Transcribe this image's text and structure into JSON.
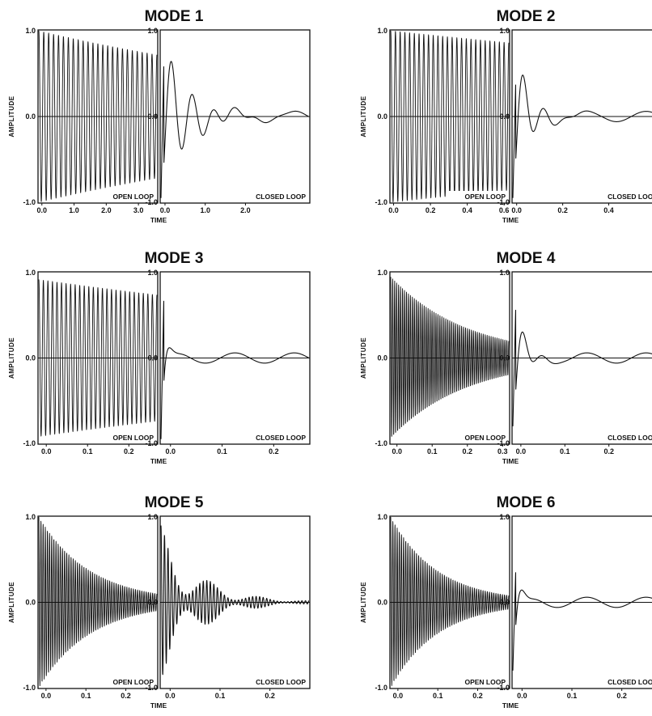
{
  "figure": {
    "ylabel": "AMPLITUDE",
    "xlabel": "TIME",
    "open_tag": "OPEN LOOP",
    "closed_tag": "CLOSED LOOP",
    "ytick_labels": [
      "1.0",
      "0.0",
      "-1.0"
    ]
  },
  "chart_data": [
    {
      "type": "line",
      "title": "MODE 1",
      "ylim": [
        -1,
        1
      ],
      "grid": false,
      "open_loop": {
        "label": "OPEN LOOP",
        "xlim": [
          -0.12,
          3.6
        ],
        "xticks": [
          0.0,
          1.0,
          2.0,
          3.0
        ],
        "xtick_labels": [
          "0.0",
          "1.0",
          "2.0",
          "3.0"
        ],
        "signal": {
          "amplitude": 1.0,
          "decay_to": 0.72,
          "cycles": 24,
          "kind": "oscillation"
        }
      },
      "closed_loop": {
        "label": "CLOSED LOOP",
        "xlim": [
          -0.12,
          3.6
        ],
        "xticks": [
          0.0,
          1.0,
          2.0
        ],
        "xtick_labels": [
          "0.0",
          "1.0",
          "2.0"
        ],
        "signal": {
          "start": -0.95,
          "peak": 0.85,
          "settle_time": 0.8,
          "kind": "damped"
        }
      }
    },
    {
      "type": "line",
      "title": "MODE 2",
      "ylim": [
        -1,
        1
      ],
      "grid": false,
      "open_loop": {
        "label": "OPEN LOOP",
        "xlim": [
          -0.02,
          0.63
        ],
        "xticks": [
          0.0,
          0.2,
          0.4,
          0.6
        ],
        "xtick_labels": [
          "0.0",
          "0.2",
          "0.4",
          "0.6"
        ],
        "signal": {
          "amplitude": 1.0,
          "decay_to": 0.86,
          "cycles": 25,
          "kind": "oscillation"
        }
      },
      "closed_loop": {
        "label": "CLOSED LOOP",
        "xlim": [
          -0.02,
          0.63
        ],
        "xticks": [
          0.0,
          0.2,
          0.4
        ],
        "xtick_labels": [
          "0.0",
          "0.2",
          "0.4"
        ],
        "signal": {
          "start": -0.95,
          "peak": 0.6,
          "settle_time": 0.45,
          "kind": "damped"
        }
      }
    },
    {
      "type": "line",
      "title": "MODE 3",
      "ylim": [
        -1,
        1
      ],
      "grid": false,
      "open_loop": {
        "label": "OPEN LOOP",
        "xlim": [
          -0.02,
          0.27
        ],
        "xticks": [
          0.0,
          0.1,
          0.2
        ],
        "xtick_labels": [
          "0.0",
          "0.1",
          "0.2"
        ],
        "signal": {
          "amplitude": 0.92,
          "decay_to": 0.74,
          "cycles": 26,
          "kind": "oscillation"
        }
      },
      "closed_loop": {
        "label": "CLOSED LOOP",
        "xlim": [
          -0.02,
          0.27
        ],
        "xticks": [
          0.0,
          0.1,
          0.2
        ],
        "xtick_labels": [
          "0.0",
          "0.1",
          "0.2"
        ],
        "signal": {
          "start": -0.95,
          "peak": 0.95,
          "settle_time": 0.12,
          "kind": "damped"
        }
      }
    },
    {
      "type": "line",
      "title": "MODE 4",
      "ylim": [
        -1,
        1
      ],
      "grid": false,
      "open_loop": {
        "label": "OPEN LOOP",
        "xlim": [
          -0.02,
          0.32
        ],
        "xticks": [
          0.0,
          0.1,
          0.2,
          0.3
        ],
        "xtick_labels": [
          "0.0",
          "0.1",
          "0.2",
          "0.3"
        ],
        "signal": {
          "amplitude": 0.95,
          "decay_to": 0.2,
          "cycles": 60,
          "kind": "oscillation"
        }
      },
      "closed_loop": {
        "label": "CLOSED LOOP",
        "xlim": [
          -0.02,
          0.32
        ],
        "xticks": [
          0.0,
          0.1,
          0.2
        ],
        "xtick_labels": [
          "0.0",
          "0.1",
          "0.2"
        ],
        "signal": {
          "start": -0.8,
          "peak": 0.8,
          "settle_time": 0.3,
          "kind": "damped"
        }
      }
    },
    {
      "type": "line",
      "title": "MODE 5",
      "ylim": [
        -1,
        1
      ],
      "grid": false,
      "open_loop": {
        "label": "OPEN LOOP",
        "xlim": [
          -0.02,
          0.28
        ],
        "xticks": [
          0.0,
          0.1,
          0.2
        ],
        "xtick_labels": [
          "0.0",
          "0.1",
          "0.2"
        ],
        "signal": {
          "amplitude": 1.0,
          "decay_to": 0.1,
          "cycles": 55,
          "kind": "oscillation"
        }
      },
      "closed_loop": {
        "label": "CLOSED LOOP",
        "xlim": [
          -0.02,
          0.28
        ],
        "xticks": [
          0.0,
          0.1,
          0.2
        ],
        "xtick_labels": [
          "0.0",
          "0.1",
          "0.2"
        ],
        "signal": {
          "start": 0.9,
          "peak": 0.9,
          "settle_time": 0.28,
          "kind": "decay"
        }
      }
    },
    {
      "type": "line",
      "title": "MODE 6",
      "ylim": [
        -1,
        1
      ],
      "grid": false,
      "open_loop": {
        "label": "OPEN LOOP",
        "xlim": [
          -0.02,
          0.28
        ],
        "xticks": [
          0.0,
          0.1,
          0.2
        ],
        "xtick_labels": [
          "0.0",
          "0.1",
          "0.2"
        ],
        "signal": {
          "amplitude": 1.0,
          "decay_to": 0.08,
          "cycles": 55,
          "kind": "oscillation"
        }
      },
      "closed_loop": {
        "label": "CLOSED LOOP",
        "xlim": [
          -0.02,
          0.28
        ],
        "xticks": [
          0.0,
          0.1,
          0.2
        ],
        "xtick_labels": [
          "0.0",
          "0.1",
          "0.2"
        ],
        "signal": {
          "start": -0.8,
          "peak": 0.55,
          "settle_time": 0.15,
          "kind": "damped"
        }
      }
    }
  ]
}
